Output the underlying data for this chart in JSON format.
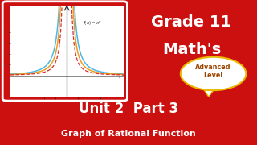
{
  "bg_color": "#cc1010",
  "graph_bg": "#ffffff",
  "title_line1": "Grade 11",
  "title_line2": "Math's",
  "subtitle": "Unit 2  Part 3",
  "subtitle2": "Graph of Rational Function",
  "badge_text": "Advanced\nLevel",
  "badge_color": "#ffffff",
  "badge_border": "#e8b800",
  "xlim": [
    -5,
    5
  ],
  "ylim": [
    -1,
    3.2
  ],
  "curve_colors": [
    "#4db8e8",
    "#e8a020",
    "#d83030"
  ],
  "annotation": "f(x) = x^n"
}
